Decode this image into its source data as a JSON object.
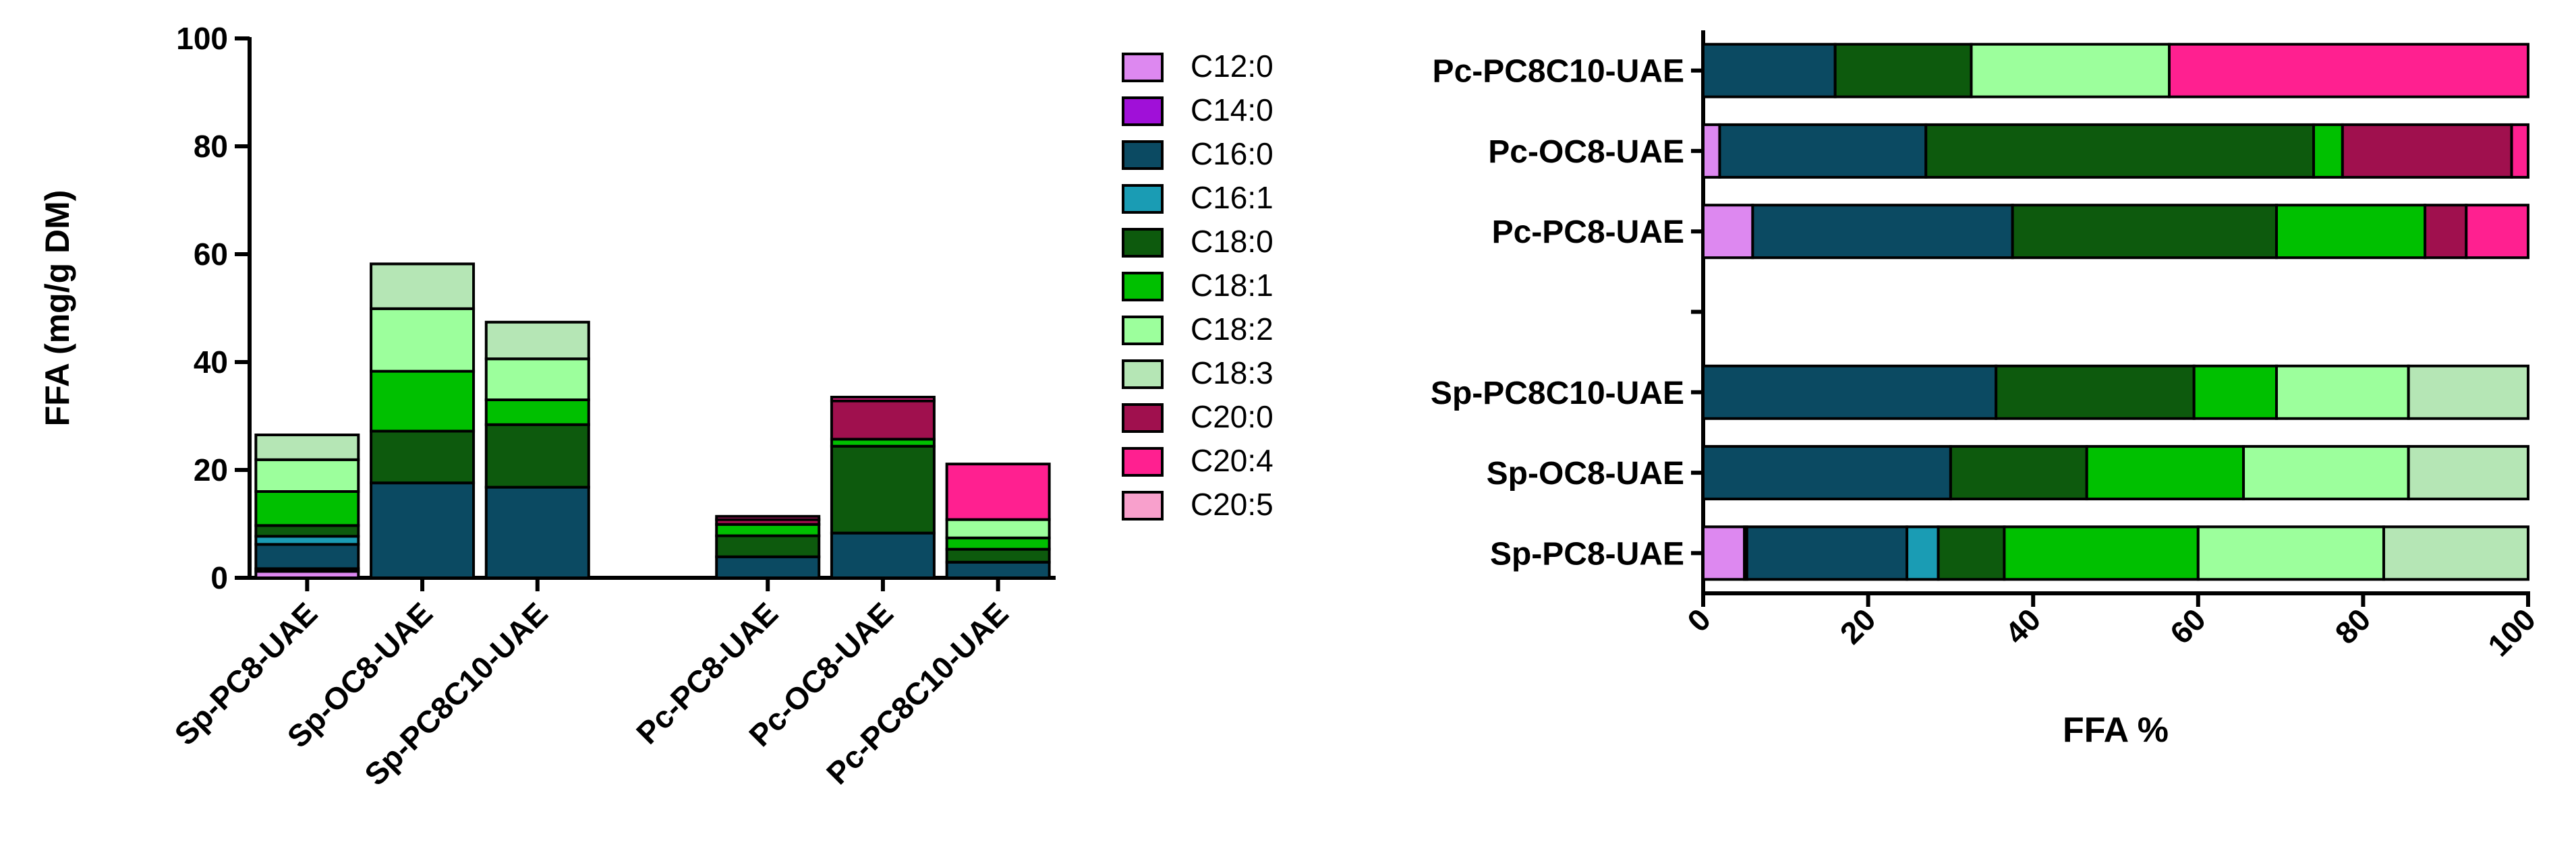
{
  "chart_data": [
    {
      "type": "bar",
      "stacked": true,
      "orientation": "vertical",
      "ylabel": "FFA (mg/g DM)",
      "ylim": [
        0,
        100
      ],
      "yticks": [
        0,
        20,
        40,
        60,
        80,
        100
      ],
      "categories": [
        "Sp-PC8-UAE",
        "Sp-OC8-UAE",
        "Sp-PC8C10-UAE",
        "",
        "Pc-PC8-UAE",
        "Pc-OC8-UAE",
        "Pc-PC8C10-UAE"
      ],
      "series": [
        {
          "name": "C12:0",
          "color": "#dd88f0",
          "values": [
            1.2,
            0,
            0,
            0,
            0,
            0,
            0
          ]
        },
        {
          "name": "C14:0",
          "color": "#a010d8",
          "values": [
            0.5,
            0,
            0,
            0,
            0,
            0,
            0
          ]
        },
        {
          "name": "C16:0",
          "color": "#0b4a62",
          "values": [
            4.5,
            17.6,
            16.8,
            0,
            3.9,
            8.3,
            2.9
          ]
        },
        {
          "name": "C16:1",
          "color": "#1a9cb4",
          "values": [
            1.5,
            0,
            0,
            0,
            0,
            0,
            0
          ]
        },
        {
          "name": "C18:0",
          "color": "#0d5a0d",
          "values": [
            2.0,
            9.6,
            11.6,
            0,
            3.9,
            16.1,
            2.4
          ]
        },
        {
          "name": "C18:1",
          "color": "#00c000",
          "values": [
            6.3,
            11.1,
            4.6,
            0,
            2.1,
            1.3,
            2.1
          ]
        },
        {
          "name": "C18:2",
          "color": "#9cff9c",
          "values": [
            5.9,
            11.6,
            7.6,
            0,
            0,
            0,
            3.4
          ]
        },
        {
          "name": "C18:3",
          "color": "#b5e6b5",
          "values": [
            4.6,
            8.3,
            6.8,
            0,
            0,
            0,
            0
          ]
        },
        {
          "name": "C20:0",
          "color": "#a0104e",
          "values": [
            0,
            0,
            0,
            0,
            0.9,
            7.1,
            0
          ]
        },
        {
          "name": "C20:4",
          "color": "#ff2090",
          "values": [
            0,
            0,
            0,
            0,
            0.6,
            0.7,
            10.3
          ]
        },
        {
          "name": "C20:5",
          "color": "#f8a0cc",
          "values": [
            0,
            0,
            0,
            0,
            0,
            0,
            0
          ]
        }
      ],
      "legend": [
        "C12:0",
        "C14:0",
        "C16:0",
        "C16:1",
        "C18:0",
        "C18:1",
        "C18:2",
        "C18:3",
        "C20:0",
        "C20:4",
        "C20:5"
      ]
    },
    {
      "type": "bar",
      "stacked": true,
      "orientation": "horizontal",
      "xlabel": "FFA %",
      "xlim": [
        0,
        100
      ],
      "xticks": [
        0,
        20,
        40,
        60,
        80,
        100
      ],
      "categories": [
        "Pc-PC8C10-UAE",
        "Pc-OC8-UAE",
        "Pc-PC8-UAE",
        "",
        "Sp-PC8C10-UAE",
        "Sp-OC8-UAE",
        "Sp-PC8-UAE"
      ],
      "series": [
        {
          "name": "C12:0",
          "color": "#dd88f0",
          "values": [
            0,
            2,
            6,
            0,
            0,
            0,
            5
          ]
        },
        {
          "name": "C14:0",
          "color": "#a010d8",
          "values": [
            0,
            0,
            0,
            0,
            0,
            0,
            0.3
          ]
        },
        {
          "name": "C16:0",
          "color": "#0b4a62",
          "values": [
            16,
            25,
            31.5,
            0,
            35.5,
            30,
            19.4
          ]
        },
        {
          "name": "C16:1",
          "color": "#1a9cb4",
          "values": [
            0,
            0,
            0,
            0,
            0,
            0,
            3.8
          ]
        },
        {
          "name": "C18:0",
          "color": "#0d5a0d",
          "values": [
            16.5,
            47,
            32,
            0,
            24,
            16.5,
            8
          ]
        },
        {
          "name": "C18:1",
          "color": "#00c000",
          "values": [
            0,
            3.5,
            18,
            0,
            10,
            19,
            23.5
          ]
        },
        {
          "name": "C18:2",
          "color": "#9cff9c",
          "values": [
            24,
            0,
            0,
            0,
            16,
            20,
            22.5
          ]
        },
        {
          "name": "C18:3",
          "color": "#b5e6b5",
          "values": [
            0,
            0,
            0,
            0,
            14.5,
            14.5,
            17.5
          ]
        },
        {
          "name": "C20:0",
          "color": "#a0104e",
          "values": [
            0,
            20.5,
            5,
            0,
            0,
            0,
            0
          ]
        },
        {
          "name": "C20:4",
          "color": "#ff2090",
          "values": [
            43.5,
            2,
            7.5,
            0,
            0,
            0,
            0
          ]
        },
        {
          "name": "C20:5",
          "color": "#f8a0cc",
          "values": [
            0,
            0,
            0,
            0,
            0,
            0,
            0
          ]
        }
      ]
    }
  ]
}
